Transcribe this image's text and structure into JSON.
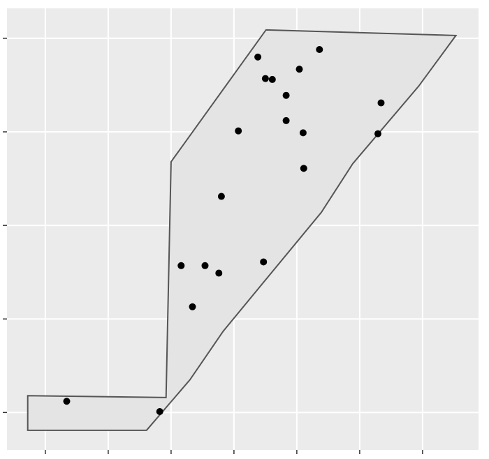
{
  "chart_data": {
    "type": "scatter",
    "x": [
      1.34,
      2.82,
      3.16,
      3.34,
      3.54,
      3.76,
      3.8,
      4.47,
      4.07,
      4.38,
      4.5,
      4.61,
      4.83,
      4.83,
      5.04,
      5.1,
      5.11,
      5.36,
      6.29,
      6.34
    ],
    "y": [
      1.12,
      1.01,
      2.57,
      2.13,
      2.57,
      2.49,
      3.31,
      2.61,
      4.01,
      4.8,
      4.57,
      4.56,
      4.39,
      4.12,
      4.67,
      3.99,
      3.61,
      4.88,
      3.98,
      4.31
    ],
    "color": "#000000",
    "polygon": {
      "x": [
        0.72,
        2.92,
        3.0,
        4.51,
        7.53,
        6.94,
        5.89,
        5.39,
        3.83,
        3.3,
        2.61,
        0.72
      ],
      "y": [
        1.18,
        1.16,
        3.68,
        5.09,
        5.03,
        4.49,
        3.66,
        3.14,
        1.87,
        1.35,
        0.81,
        0.81
      ],
      "fill": "#e4e4e4",
      "stroke": "#555555"
    },
    "xlim": [
      0.39,
      7.89
    ],
    "ylim": [
      0.6,
      5.32
    ],
    "xticks": [
      1,
      2,
      3,
      4,
      5,
      6,
      7
    ],
    "yticks": [
      1,
      2,
      3,
      4,
      5
    ],
    "grid": true
  }
}
